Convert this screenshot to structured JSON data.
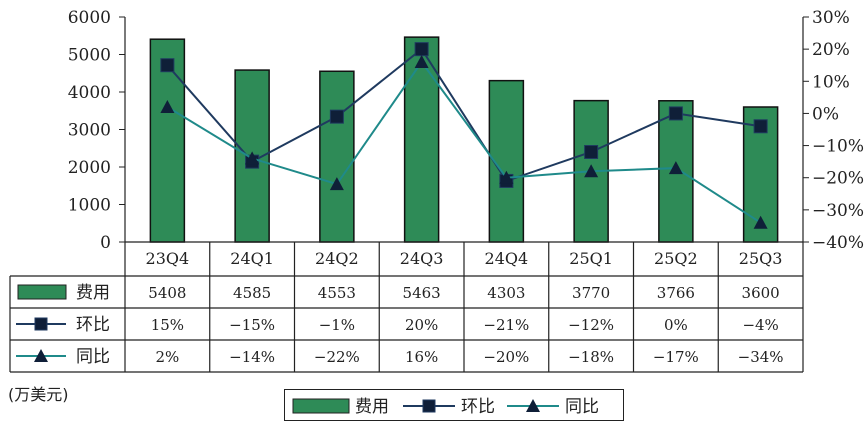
{
  "chart_data": {
    "type": "bar",
    "categories": [
      "23Q4",
      "24Q1",
      "24Q2",
      "24Q3",
      "24Q4",
      "25Q1",
      "25Q2",
      "25Q3"
    ],
    "series": [
      {
        "name": "费用",
        "type": "bar",
        "axis": "left",
        "values": [
          5408,
          4585,
          4553,
          5463,
          4303,
          3770,
          3766,
          3600
        ],
        "labels": [
          "5408",
          "4585",
          "4553",
          "5463",
          "4303",
          "3770",
          "3766",
          "3600"
        ],
        "color": "#2e8b57"
      },
      {
        "name": "环比",
        "type": "line",
        "axis": "right",
        "marker": "square",
        "values": [
          15,
          -15,
          -1,
          20,
          -21,
          -12,
          0,
          -4
        ],
        "labels": [
          "15%",
          "−15%",
          "−1%",
          "20%",
          "−21%",
          "−12%",
          "0%",
          "−4%"
        ],
        "color": "#1f3a5f"
      },
      {
        "name": "同比",
        "type": "line",
        "axis": "right",
        "marker": "triangle",
        "values": [
          2,
          -14,
          -22,
          16,
          -20,
          -18,
          -17,
          -34
        ],
        "labels": [
          "2%",
          "−14%",
          "−22%",
          "16%",
          "−20%",
          "−18%",
          "−17%",
          "−34%"
        ],
        "color": "#1f8a8a"
      }
    ],
    "y_left": {
      "ticks": [
        "6000",
        "5000",
        "4000",
        "3000",
        "2000",
        "1000",
        "0"
      ],
      "ylim": [
        0,
        6000
      ]
    },
    "y_right": {
      "ticks": [
        "30%",
        "20%",
        "10%",
        "0%",
        "−10%",
        "−20%",
        "−30%",
        "−40%"
      ],
      "ylim": [
        -40,
        30
      ]
    },
    "grid": false,
    "legend": "bottom",
    "data_table": true,
    "unit_label": "(万美元)"
  }
}
